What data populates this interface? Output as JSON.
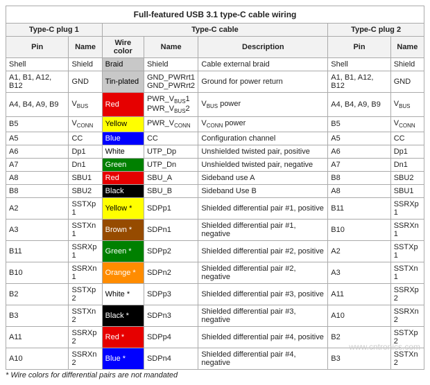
{
  "title": "Full-featured USB 3.1 type-C cable wiring",
  "watermark": "www.cntronics.com",
  "top_headers": {
    "plug1": "Type-C plug 1",
    "cable": "Type-C cable",
    "plug2": "Type-C plug 2"
  },
  "col_headers": {
    "pin1": "Pin",
    "name1": "Name",
    "wirecolor": "Wire color",
    "name_c": "Name",
    "desc": "Description",
    "pin2": "Pin",
    "name2": "Name"
  },
  "colwidths": {
    "pin1": "15%",
    "name1": "8%",
    "wirecolor": "10%",
    "name_c": "13%",
    "desc": "31%",
    "pin2": "15%",
    "name2": "8%"
  },
  "rows": [
    {
      "pin1": "Shell",
      "name1": "Shield",
      "wc_label": "Braid",
      "wc_bg": "#c8c8c8",
      "wc_fg": "#000000",
      "name_c": "Shield",
      "desc": "Cable external braid",
      "pin2": "Shell",
      "name2": "Shield"
    },
    {
      "pin1": "A1, B1, A12, B12",
      "name1": "GND",
      "wc_label": "Tin-plated",
      "wc_bg": "#c8c8c8",
      "wc_fg": "#000000",
      "name_c": [
        "GND_PWRrt1",
        "GND_PWRrt2"
      ],
      "desc": "Ground for power return",
      "pin2": "A1, B1, A12, B12",
      "name2": "GND"
    },
    {
      "pin1": "A4, B4, A9, B9",
      "name1_html": "V<sub>BUS</sub>",
      "wc_label": "Red",
      "wc_bg": "#e60000",
      "wc_fg": "#ffffff",
      "name_c_html": [
        "PWR_V<sub>BUS</sub>1",
        "PWR_V<sub>BUS</sub>2"
      ],
      "desc_html": "V<sub>BUS</sub> power",
      "pin2": "A4, B4, A9, B9",
      "name2_html": "V<sub>BUS</sub>"
    },
    {
      "pin1": "B5",
      "name1_html": "V<sub>CONN</sub>",
      "wc_label": "Yellow",
      "wc_bg": "#ffff00",
      "wc_fg": "#000000",
      "name_c_html": "PWR_V<sub>CONN</sub>",
      "desc_html": "V<sub>CONN</sub> power",
      "pin2": "B5",
      "name2_html": "V<sub>CONN</sub>"
    },
    {
      "pin1": "A5",
      "name1": "CC",
      "wc_label": "Blue",
      "wc_bg": "#0000ff",
      "wc_fg": "#ffffff",
      "name_c": "CC",
      "desc": "Configuration channel",
      "pin2": "A5",
      "name2": "CC"
    },
    {
      "pin1": "A6",
      "name1": "Dp1",
      "wc_label": "White",
      "wc_bg": "#ffffff",
      "wc_fg": "#000000",
      "name_c": "UTP_Dp",
      "desc": "Unshielded twisted pair, positive",
      "pin2": "A6",
      "name2": "Dp1"
    },
    {
      "pin1": "A7",
      "name1": "Dn1",
      "wc_label": "Green",
      "wc_bg": "#008000",
      "wc_fg": "#ffffff",
      "name_c": "UTP_Dn",
      "desc": "Unshielded twisted pair, negative",
      "pin2": "A7",
      "name2": "Dn1"
    },
    {
      "pin1": "A8",
      "name1": "SBU1",
      "wc_label": "Red",
      "wc_bg": "#e60000",
      "wc_fg": "#ffffff",
      "name_c": "SBU_A",
      "desc": "Sideband use A",
      "pin2": "B8",
      "name2": "SBU2"
    },
    {
      "pin1": "B8",
      "name1": "SBU2",
      "wc_label": "Black",
      "wc_bg": "#000000",
      "wc_fg": "#ffffff",
      "name_c": "SBU_B",
      "desc": "Sideband Use B",
      "pin2": "A8",
      "name2": "SBU1"
    },
    {
      "pin1": "A2",
      "name1": "SSTXp1",
      "wc_label": "Yellow *",
      "wc_bg": "#ffff00",
      "wc_fg": "#000000",
      "name_c": "SDPp1",
      "desc": "Shielded differential pair #1, positive",
      "pin2": "B11",
      "name2": "SSRXp1"
    },
    {
      "pin1": "A3",
      "name1": "SSTXn1",
      "wc_label": "Brown *",
      "wc_bg": "#964b00",
      "wc_fg": "#ffffff",
      "name_c": "SDPn1",
      "desc": "Shielded differential pair #1, negative",
      "pin2": "B10",
      "name2": "SSRXn1"
    },
    {
      "pin1": "B11",
      "name1": "SSRXp1",
      "wc_label": "Green *",
      "wc_bg": "#008000",
      "wc_fg": "#ffffff",
      "name_c": "SDPp2",
      "desc": "Shielded differential pair #2, positive",
      "pin2": "A2",
      "name2": "SSTXp1"
    },
    {
      "pin1": "B10",
      "name1": "SSRXn1",
      "wc_label": "Orange *",
      "wc_bg": "#ff8c00",
      "wc_fg": "#ffffff",
      "name_c": "SDPn2",
      "desc": "Shielded differential pair #2, negative",
      "pin2": "A3",
      "name2": "SSTXn1"
    },
    {
      "pin1": "B2",
      "name1": "SSTXp2",
      "wc_label": "White *",
      "wc_bg": "#ffffff",
      "wc_fg": "#000000",
      "name_c": "SDPp3",
      "desc": "Shielded differential pair #3, positive",
      "pin2": "A11",
      "name2": "SSRXp2"
    },
    {
      "pin1": "B3",
      "name1": "SSTXn2",
      "wc_label": "Black *",
      "wc_bg": "#000000",
      "wc_fg": "#ffffff",
      "name_c": "SDPn3",
      "desc": "Shielded differential pair #3, negative",
      "pin2": "A10",
      "name2": "SSRXn2"
    },
    {
      "pin1": "A11",
      "name1": "SSRXp2",
      "wc_label": "Red *",
      "wc_bg": "#e60000",
      "wc_fg": "#ffffff",
      "name_c": "SDPp4",
      "desc": "Shielded differential pair #4, positive",
      "pin2": "B2",
      "name2": "SSTXp2"
    },
    {
      "pin1": "A10",
      "name1": "SSRXn2",
      "wc_label": "Blue *",
      "wc_bg": "#0000ff",
      "wc_fg": "#ffffff",
      "name_c": "SDPn4",
      "desc": "Shielded differential pair #4, negative",
      "pin2": "B3",
      "name2": "SSTXn2"
    }
  ],
  "footnote": "* Wire colors for differential pairs are not mandated"
}
